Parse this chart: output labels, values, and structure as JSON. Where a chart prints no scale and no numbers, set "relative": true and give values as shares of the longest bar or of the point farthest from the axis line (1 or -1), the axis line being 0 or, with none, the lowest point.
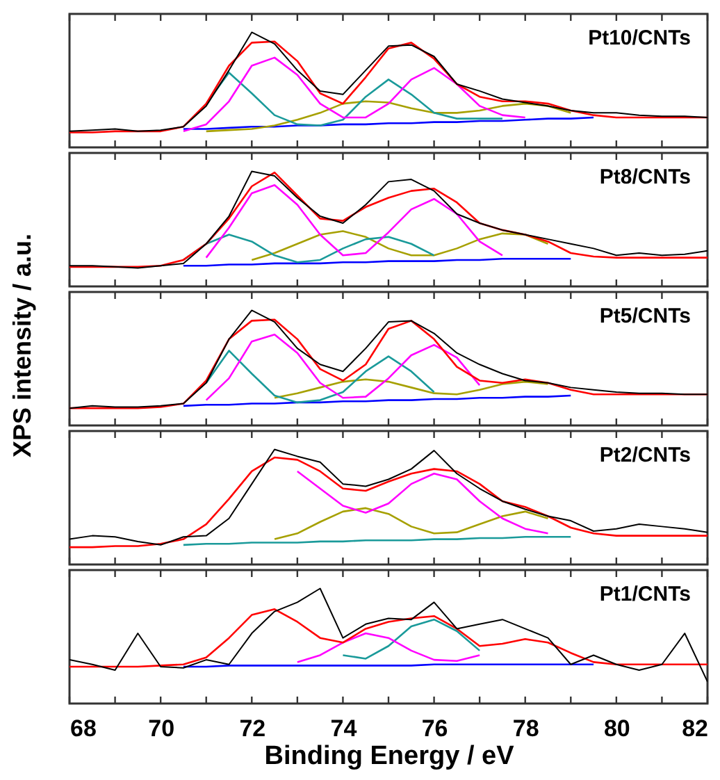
{
  "chart_data": [
    {
      "type": "line",
      "relative": true,
      "annotations": [
        "Pt10/CNTs"
      ],
      "xlim": [
        68,
        82
      ],
      "xticks": [
        68,
        {
          "value": 69,
          "label": null
        },
        70,
        {
          "value": 71,
          "label": null
        },
        72,
        {
          "value": 73,
          "label": null
        },
        74,
        {
          "value": 75,
          "label": null
        },
        76,
        {
          "value": 77,
          "label": null
        },
        78,
        {
          "value": 79,
          "label": null
        },
        80,
        {
          "value": 81,
          "label": null
        },
        82
      ],
      "tick_labels": false,
      "x": [
        68,
        68.5,
        69,
        69.5,
        70,
        70.5,
        71,
        71.5,
        72,
        72.5,
        73,
        73.5,
        74,
        74.5,
        75,
        75.5,
        76,
        76.5,
        77,
        77.5,
        78,
        78.5,
        79,
        79.5,
        80,
        80.5,
        81,
        81.5,
        82
      ],
      "series": [
        {
          "color": "#0000ff",
          "values": [
            null,
            null,
            null,
            null,
            null,
            0.16,
            0.16,
            0.17,
            0.18,
            0.18,
            0.19,
            0.19,
            0.2,
            0.2,
            0.21,
            0.21,
            0.22,
            0.22,
            0.23,
            0.23,
            0.24,
            0.25,
            0.25,
            0.26,
            null,
            null,
            null,
            null,
            null
          ]
        },
        {
          "color": "#a6a000",
          "values": [
            null,
            null,
            null,
            null,
            null,
            null,
            0.14,
            0.15,
            0.16,
            0.19,
            0.24,
            0.3,
            0.38,
            0.4,
            0.39,
            0.34,
            0.3,
            0.3,
            0.32,
            0.36,
            0.38,
            0.36,
            0.3,
            null,
            null,
            null,
            null,
            null,
            null
          ]
        },
        {
          "color": "#1a9a9a",
          "values": [
            null,
            null,
            null,
            null,
            null,
            null,
            0.38,
            0.65,
            0.47,
            0.28,
            0.2,
            0.19,
            0.24,
            0.44,
            0.59,
            0.46,
            0.3,
            0.25,
            0.25,
            0.25,
            null,
            null,
            null,
            null,
            null,
            null,
            null,
            null,
            null
          ]
        },
        {
          "color": "#ff00ff",
          "values": [
            null,
            null,
            null,
            null,
            null,
            0.14,
            0.2,
            0.4,
            0.71,
            0.78,
            0.63,
            0.38,
            0.26,
            0.26,
            0.38,
            0.59,
            0.69,
            0.55,
            0.36,
            0.28,
            0.26,
            null,
            null,
            null,
            null,
            null,
            null,
            null,
            null
          ]
        },
        {
          "color": "#ff0000",
          "values": [
            0.13,
            0.13,
            0.14,
            0.14,
            0.14,
            0.18,
            0.38,
            0.71,
            0.91,
            0.92,
            0.75,
            0.47,
            0.38,
            0.61,
            0.86,
            0.91,
            0.77,
            0.55,
            0.44,
            0.4,
            0.4,
            0.38,
            0.32,
            0.28,
            0.26,
            0.26,
            0.26,
            0.26,
            0.26
          ]
        },
        {
          "color": "#000000",
          "values": [
            0.14,
            0.15,
            0.16,
            0.14,
            0.15,
            0.18,
            0.36,
            0.67,
            1.0,
            0.9,
            0.67,
            0.49,
            0.46,
            0.67,
            0.88,
            0.89,
            0.79,
            0.55,
            0.49,
            0.42,
            0.39,
            0.36,
            0.32,
            0.3,
            0.3,
            0.28,
            0.27,
            0.27,
            0.26
          ]
        }
      ]
    },
    {
      "type": "line",
      "relative": true,
      "annotations": [
        "Pt8/CNTs"
      ],
      "xlim": [
        68,
        82
      ],
      "xticks": [
        68,
        {
          "value": 69,
          "label": null
        },
        70,
        {
          "value": 71,
          "label": null
        },
        72,
        {
          "value": 73,
          "label": null
        },
        74,
        {
          "value": 75,
          "label": null
        },
        76,
        {
          "value": 77,
          "label": null
        },
        78,
        {
          "value": 79,
          "label": null
        },
        80,
        {
          "value": 81,
          "label": null
        },
        82
      ],
      "tick_labels": false,
      "x": [
        68,
        68.5,
        69,
        69.5,
        70,
        70.5,
        71,
        71.5,
        72,
        72.5,
        73,
        73.5,
        74,
        74.5,
        75,
        75.5,
        76,
        76.5,
        77,
        77.5,
        78,
        78.5,
        79,
        79.5,
        80,
        80.5,
        81,
        81.5,
        82
      ],
      "series": [
        {
          "color": "#0000ff",
          "values": [
            null,
            null,
            null,
            null,
            null,
            0.18,
            0.18,
            0.19,
            0.19,
            0.2,
            0.2,
            0.2,
            0.21,
            0.21,
            0.22,
            0.22,
            0.22,
            0.23,
            0.23,
            0.24,
            0.24,
            0.24,
            0.24,
            null,
            null,
            null,
            null,
            null,
            null
          ]
        },
        {
          "color": "#a6a000",
          "values": [
            null,
            null,
            null,
            null,
            null,
            null,
            null,
            null,
            0.23,
            0.29,
            0.37,
            0.45,
            0.48,
            0.43,
            0.33,
            0.27,
            0.27,
            0.33,
            0.41,
            0.46,
            0.45,
            0.37,
            null,
            null,
            null,
            null,
            null,
            null,
            null
          ]
        },
        {
          "color": "#1a9a9a",
          "values": [
            null,
            null,
            null,
            null,
            null,
            0.23,
            0.37,
            0.45,
            0.39,
            0.27,
            0.21,
            0.23,
            0.33,
            0.41,
            0.43,
            0.37,
            0.27,
            null,
            null,
            null,
            null,
            null,
            null,
            null,
            null,
            null,
            null,
            null,
            null
          ]
        },
        {
          "color": "#ff00ff",
          "values": [
            null,
            null,
            null,
            null,
            null,
            null,
            0.25,
            0.51,
            0.81,
            0.88,
            0.71,
            0.45,
            0.27,
            0.29,
            0.47,
            0.67,
            0.76,
            0.63,
            0.39,
            0.27,
            null,
            null,
            null,
            null,
            null,
            null,
            null,
            null,
            null
          ]
        },
        {
          "color": "#ff0000",
          "values": [
            0.17,
            0.17,
            0.17,
            0.17,
            0.18,
            0.23,
            0.37,
            0.59,
            0.87,
            0.99,
            0.79,
            0.59,
            0.57,
            0.69,
            0.77,
            0.83,
            0.85,
            0.73,
            0.55,
            0.49,
            0.45,
            0.39,
            0.29,
            0.26,
            0.25,
            0.25,
            0.25,
            0.25,
            0.25
          ]
        },
        {
          "color": "#000000",
          "values": [
            0.18,
            0.18,
            0.17,
            0.16,
            0.18,
            0.2,
            0.37,
            0.61,
            1.0,
            0.96,
            0.77,
            0.61,
            0.55,
            0.71,
            0.91,
            0.93,
            0.83,
            0.63,
            0.55,
            0.49,
            0.45,
            0.41,
            0.37,
            0.33,
            0.27,
            0.29,
            0.27,
            0.28,
            0.31
          ]
        }
      ]
    },
    {
      "type": "line",
      "relative": true,
      "ylabel": "XPS intensity / a.u.",
      "annotations": [
        "Pt5/CNTs"
      ],
      "xlim": [
        68,
        82
      ],
      "xticks": [
        68,
        {
          "value": 69,
          "label": null
        },
        70,
        {
          "value": 71,
          "label": null
        },
        72,
        {
          "value": 73,
          "label": null
        },
        74,
        {
          "value": 75,
          "label": null
        },
        76,
        {
          "value": 77,
          "label": null
        },
        78,
        {
          "value": 79,
          "label": null
        },
        80,
        {
          "value": 81,
          "label": null
        },
        82
      ],
      "tick_labels": false,
      "x": [
        68,
        68.5,
        69,
        69.5,
        70,
        70.5,
        71,
        71.5,
        72,
        72.5,
        73,
        73.5,
        74,
        74.5,
        75,
        75.5,
        76,
        76.5,
        77,
        77.5,
        78,
        78.5,
        79,
        79.5,
        80,
        80.5,
        81,
        81.5,
        82
      ],
      "series": [
        {
          "color": "#0000ff",
          "values": [
            null,
            null,
            null,
            null,
            null,
            0.17,
            0.18,
            0.18,
            0.19,
            0.19,
            0.2,
            0.2,
            0.21,
            0.21,
            0.22,
            0.22,
            0.23,
            0.23,
            0.24,
            0.24,
            0.25,
            0.25,
            0.26,
            null,
            null,
            null,
            null,
            null,
            null
          ]
        },
        {
          "color": "#a6a000",
          "values": [
            null,
            null,
            null,
            null,
            null,
            null,
            null,
            null,
            null,
            0.24,
            0.28,
            0.33,
            0.38,
            0.4,
            0.38,
            0.33,
            0.28,
            0.27,
            0.31,
            0.36,
            0.38,
            0.36,
            null,
            null,
            null,
            null,
            null,
            null,
            null
          ]
        },
        {
          "color": "#1a9a9a",
          "values": [
            null,
            null,
            null,
            null,
            null,
            null,
            0.37,
            0.65,
            0.45,
            0.26,
            0.2,
            0.22,
            0.29,
            0.47,
            0.6,
            0.47,
            0.29,
            null,
            null,
            null,
            null,
            null,
            null,
            null,
            null,
            null,
            null,
            null,
            null
          ]
        },
        {
          "color": "#ff00ff",
          "values": [
            null,
            null,
            null,
            null,
            null,
            null,
            0.22,
            0.41,
            0.73,
            0.79,
            0.63,
            0.37,
            0.24,
            0.25,
            0.41,
            0.61,
            0.7,
            0.59,
            0.35,
            null,
            null,
            null,
            null,
            null,
            null,
            null,
            null,
            null,
            null
          ]
        },
        {
          "color": "#ff0000",
          "values": [
            0.15,
            0.15,
            0.15,
            0.15,
            0.16,
            0.19,
            0.39,
            0.75,
            0.91,
            0.92,
            0.75,
            0.49,
            0.39,
            0.53,
            0.84,
            0.91,
            0.75,
            0.51,
            0.39,
            0.37,
            0.4,
            0.37,
            0.31,
            0.27,
            0.27,
            0.27,
            0.27,
            0.27,
            0.27
          ]
        },
        {
          "color": "#000000",
          "values": [
            0.15,
            0.17,
            0.16,
            0.16,
            0.17,
            0.19,
            0.37,
            0.75,
            1.0,
            0.9,
            0.67,
            0.53,
            0.47,
            0.67,
            0.9,
            0.91,
            0.8,
            0.63,
            0.53,
            0.45,
            0.39,
            0.37,
            0.33,
            0.31,
            0.29,
            0.28,
            0.28,
            0.27,
            0.27
          ]
        }
      ]
    },
    {
      "type": "line",
      "relative": true,
      "annotations": [
        "Pt2/CNTs"
      ],
      "xlim": [
        68,
        82
      ],
      "xticks": [
        68,
        {
          "value": 69,
          "label": null
        },
        70,
        {
          "value": 71,
          "label": null
        },
        72,
        {
          "value": 73,
          "label": null
        },
        74,
        {
          "value": 75,
          "label": null
        },
        76,
        {
          "value": 77,
          "label": null
        },
        78,
        {
          "value": 79,
          "label": null
        },
        80,
        {
          "value": 81,
          "label": null
        },
        82
      ],
      "tick_labels": false,
      "x": [
        68,
        68.5,
        69,
        69.5,
        70,
        70.5,
        71,
        71.5,
        72,
        72.5,
        73,
        73.5,
        74,
        74.5,
        75,
        75.5,
        76,
        76.5,
        77,
        77.5,
        78,
        78.5,
        79,
        79.5,
        80,
        80.5,
        81,
        81.5,
        82
      ],
      "series": [
        {
          "color": "#1a9a9a",
          "values": [
            null,
            null,
            null,
            null,
            null,
            0.17,
            0.18,
            0.18,
            0.19,
            0.19,
            0.19,
            0.2,
            0.2,
            0.21,
            0.21,
            0.21,
            0.22,
            0.22,
            0.23,
            0.23,
            0.24,
            0.24,
            0.24,
            null,
            null,
            null,
            null,
            null,
            null
          ]
        },
        {
          "color": "#a6a000",
          "values": [
            null,
            null,
            null,
            null,
            null,
            null,
            null,
            null,
            null,
            0.22,
            0.27,
            0.37,
            0.46,
            0.49,
            0.44,
            0.33,
            0.27,
            0.28,
            0.35,
            0.42,
            0.46,
            0.4,
            null,
            null,
            null,
            null,
            null,
            null,
            null
          ]
        },
        {
          "color": "#ff00ff",
          "values": [
            null,
            null,
            null,
            null,
            null,
            null,
            null,
            null,
            null,
            null,
            0.81,
            0.66,
            0.51,
            0.45,
            0.53,
            0.7,
            0.79,
            0.74,
            0.55,
            0.4,
            0.31,
            0.27,
            null,
            null,
            null,
            null,
            null,
            null,
            null
          ]
        },
        {
          "color": "#ff0000",
          "values": [
            0.15,
            0.15,
            0.16,
            0.16,
            0.18,
            0.22,
            0.35,
            0.57,
            0.81,
            0.93,
            0.91,
            0.81,
            0.66,
            0.64,
            0.72,
            0.79,
            0.83,
            0.81,
            0.7,
            0.55,
            0.5,
            0.42,
            0.32,
            0.27,
            0.25,
            0.25,
            0.25,
            0.25,
            0.25
          ]
        },
        {
          "color": "#000000",
          "values": [
            0.22,
            0.25,
            0.24,
            0.2,
            0.17,
            0.24,
            0.25,
            0.4,
            0.7,
            1.0,
            0.94,
            0.89,
            0.7,
            0.68,
            0.74,
            0.83,
            0.99,
            0.79,
            0.66,
            0.55,
            0.48,
            0.42,
            0.38,
            0.29,
            0.31,
            0.35,
            0.33,
            0.31,
            0.28
          ]
        }
      ]
    },
    {
      "type": "line",
      "relative": true,
      "xlabel": "Binding Energy / eV",
      "annotations": [
        "Pt1/CNTs"
      ],
      "xlim": [
        68,
        82
      ],
      "xticks": [
        68,
        {
          "value": 69,
          "label": null
        },
        70,
        {
          "value": 71,
          "label": null
        },
        72,
        {
          "value": 73,
          "label": null
        },
        74,
        {
          "value": 75,
          "label": null
        },
        76,
        {
          "value": 77,
          "label": null
        },
        78,
        {
          "value": 79,
          "label": null
        },
        80,
        {
          "value": 81,
          "label": null
        },
        82
      ],
      "tick_labels": "x",
      "x": [
        68,
        68.5,
        69,
        69.5,
        70,
        70.5,
        71,
        71.5,
        72,
        72.5,
        73,
        73.5,
        74,
        74.5,
        75,
        75.5,
        76,
        76.5,
        77,
        77.5,
        78,
        78.5,
        79,
        79.5,
        80,
        80.5,
        81,
        81.5,
        82
      ],
      "series": [
        {
          "color": "#0000ff",
          "values": [
            null,
            null,
            null,
            null,
            null,
            0.32,
            0.32,
            0.33,
            0.33,
            0.33,
            0.33,
            0.33,
            0.33,
            0.33,
            0.33,
            0.33,
            0.34,
            0.34,
            0.34,
            0.34,
            0.34,
            0.34,
            0.34,
            0.34,
            null,
            null,
            null,
            null,
            null
          ]
        },
        {
          "color": "#1a9a9a",
          "values": [
            null,
            null,
            null,
            null,
            null,
            null,
            null,
            null,
            null,
            null,
            null,
            null,
            0.42,
            0.39,
            0.5,
            0.67,
            0.73,
            0.63,
            0.46,
            null,
            null,
            null,
            null,
            null,
            null,
            null,
            null,
            null,
            null
          ]
        },
        {
          "color": "#ff00ff",
          "values": [
            null,
            null,
            null,
            null,
            null,
            null,
            null,
            null,
            null,
            null,
            0.36,
            0.42,
            0.53,
            0.61,
            0.57,
            0.46,
            0.38,
            0.37,
            0.42,
            null,
            null,
            null,
            null,
            null,
            null,
            null,
            null,
            null,
            null
          ]
        },
        {
          "color": "#ff0000",
          "values": [
            0.32,
            0.32,
            0.32,
            0.32,
            0.33,
            0.34,
            0.4,
            0.57,
            0.77,
            0.82,
            0.71,
            0.57,
            0.53,
            0.65,
            0.71,
            0.74,
            0.76,
            0.65,
            0.5,
            0.52,
            0.56,
            0.53,
            0.44,
            0.36,
            0.34,
            0.34,
            0.34,
            0.34,
            0.34
          ]
        },
        {
          "color": "#000000",
          "values": [
            0.38,
            0.34,
            0.29,
            0.61,
            0.32,
            0.31,
            0.38,
            0.34,
            0.61,
            0.8,
            0.88,
            1.0,
            0.57,
            0.69,
            0.74,
            0.73,
            0.88,
            0.65,
            0.69,
            0.73,
            0.65,
            0.57,
            0.34,
            0.42,
            0.34,
            0.29,
            0.34,
            0.61,
            0.19
          ]
        }
      ]
    }
  ]
}
